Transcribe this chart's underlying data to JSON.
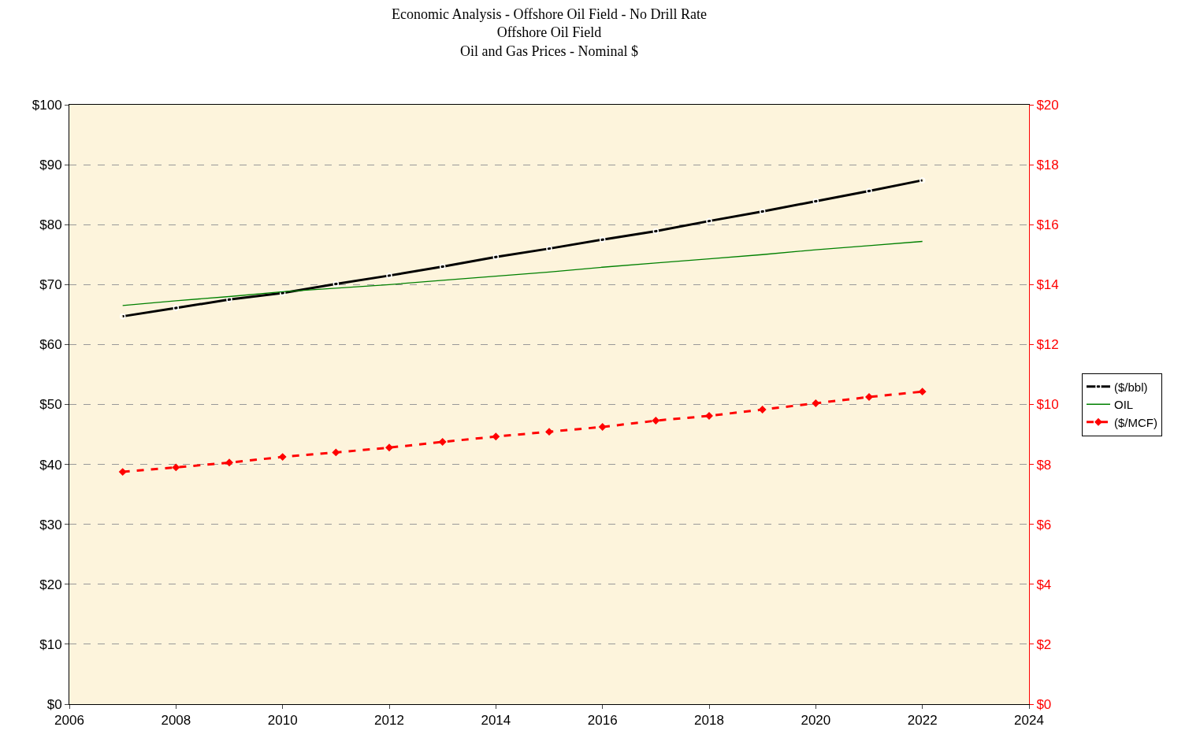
{
  "chart_data": {
    "type": "line",
    "title": "Economic Analysis - Offshore Oil Field - No Drill Rate\nOffshore Oil Field\nOil and Gas Prices - Nominal $",
    "x": [
      2007,
      2008,
      2009,
      2010,
      2011,
      2012,
      2013,
      2014,
      2015,
      2016,
      2017,
      2018,
      2019,
      2020,
      2021,
      2022
    ],
    "series": [
      {
        "name": "($/bbl)",
        "color": "#000000",
        "marker": "circle",
        "line_style": "solid",
        "values": [
          64.7,
          66.1,
          67.5,
          68.6,
          70.1,
          71.5,
          73.0,
          74.6,
          76.0,
          77.5,
          78.9,
          80.6,
          82.2,
          83.9,
          85.6,
          87.4
        ]
      },
      {
        "name": "OIL",
        "color": "#008000",
        "marker": "none",
        "line_style": "solid",
        "values": [
          66.5,
          67.3,
          68.0,
          68.8,
          69.4,
          70.0,
          70.7,
          71.4,
          72.1,
          72.9,
          73.6,
          74.3,
          75.0,
          75.8,
          76.5,
          77.2
        ]
      },
      {
        "name": "($/MCF)",
        "color": "#ff0000",
        "marker": "diamond",
        "line_style": "dashed",
        "axis": "y2",
        "values": [
          7.75,
          7.9,
          8.06,
          8.25,
          8.4,
          8.56,
          8.75,
          8.93,
          9.09,
          9.25,
          9.46,
          9.62,
          9.83,
          10.04,
          10.25,
          10.43
        ]
      }
    ],
    "xlim": [
      2006,
      2024
    ],
    "xticks": [
      2006,
      2008,
      2010,
      2012,
      2014,
      2016,
      2018,
      2020,
      2022,
      2024
    ],
    "ylim": [
      0,
      100
    ],
    "yticks": [
      {
        "value": 0,
        "label": "$0"
      },
      {
        "value": 10,
        "label": "$10"
      },
      {
        "value": 20,
        "label": "$20"
      },
      {
        "value": 30,
        "label": "$30"
      },
      {
        "value": 40,
        "label": "$40"
      },
      {
        "value": 50,
        "label": "$50"
      },
      {
        "value": 60,
        "label": "$60"
      },
      {
        "value": 70,
        "label": "$70"
      },
      {
        "value": 80,
        "label": "$80"
      },
      {
        "value": 90,
        "label": "$90"
      },
      {
        "value": 100,
        "label": "$100"
      }
    ],
    "y2lim": [
      0,
      20
    ],
    "y2ticks": [
      {
        "value": 0,
        "label": "$0"
      },
      {
        "value": 2,
        "label": "$2"
      },
      {
        "value": 4,
        "label": "$4"
      },
      {
        "value": 6,
        "label": "$6"
      },
      {
        "value": 8,
        "label": "$8"
      },
      {
        "value": 10,
        "label": "$10"
      },
      {
        "value": 12,
        "label": "$12"
      },
      {
        "value": 14,
        "label": "$14"
      },
      {
        "value": 16,
        "label": "$16"
      },
      {
        "value": 18,
        "label": "$18"
      },
      {
        "value": 20,
        "label": "$20"
      }
    ],
    "grid": "y",
    "legend": "right"
  }
}
